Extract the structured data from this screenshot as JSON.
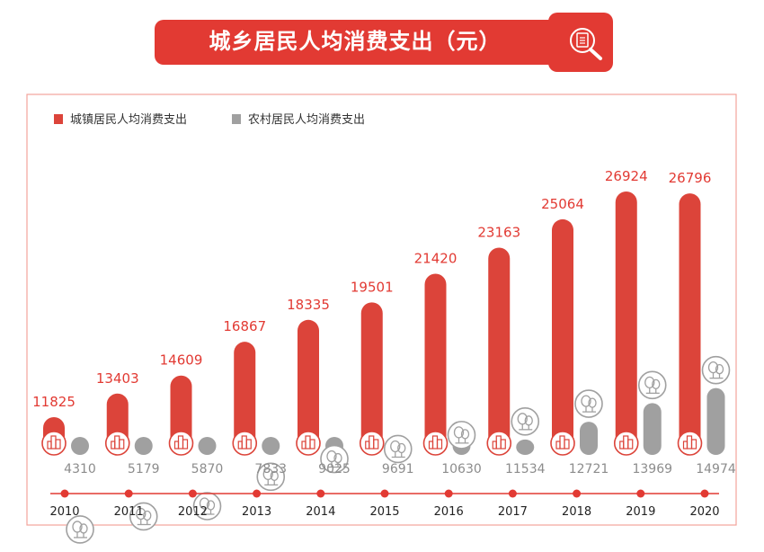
{
  "title": "城乡居民人均消费支出（元）",
  "colors": {
    "urban": "#dc443a",
    "rural": "#a0a0a0",
    "accent": "#e23a33",
    "label_rural": "#8c8c8c"
  },
  "icons": {
    "banner": "document-search-icon",
    "urban": "city-buildings-icon",
    "rural": "tree-icon"
  },
  "chart_data": {
    "type": "bar",
    "categories": [
      "2010",
      "2011",
      "2012",
      "2013",
      "2014",
      "2015",
      "2016",
      "2017",
      "2018",
      "2019",
      "2020"
    ],
    "series": [
      {
        "name": "城镇居民人均消费支出",
        "values": [
          11825,
          13403,
          14609,
          16867,
          18335,
          19501,
          21420,
          23163,
          25064,
          26924,
          26796
        ]
      },
      {
        "name": "农村居民人均消费支出",
        "values": [
          4310,
          5179,
          5870,
          7833,
          9025,
          9691,
          10630,
          11534,
          12721,
          13969,
          14974
        ]
      }
    ],
    "legend": "top-left",
    "grid": false
  }
}
